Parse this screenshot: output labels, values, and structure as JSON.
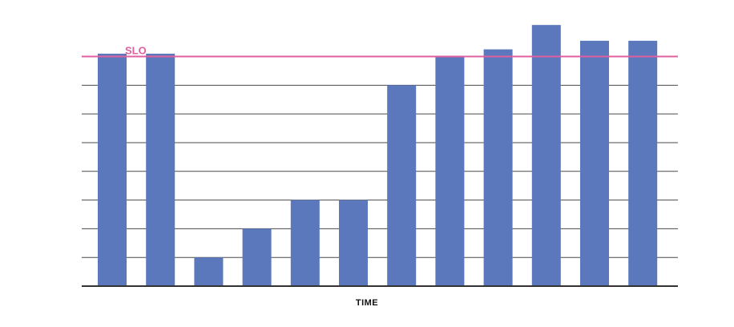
{
  "chart_data": {
    "type": "bar",
    "xlabel": "TIME",
    "categories": [
      "",
      "",
      "",
      "",
      "",
      "",
      "",
      "",
      "",
      "",
      "",
      ""
    ],
    "values": [
      8.1,
      8.1,
      1.0,
      2.0,
      3.0,
      3.0,
      7.0,
      8.0,
      8.25,
      9.1,
      8.55,
      8.55
    ],
    "ylim": [
      0,
      9.3
    ],
    "gridlines": [
      1,
      2,
      3,
      4,
      5,
      6,
      7,
      8
    ],
    "grid": true,
    "reference_line": {
      "label": "SLO",
      "value": 8.0,
      "color": "#e0609f"
    },
    "bar_color": "#5b78bd",
    "grid_color": "#4a4a4a"
  }
}
